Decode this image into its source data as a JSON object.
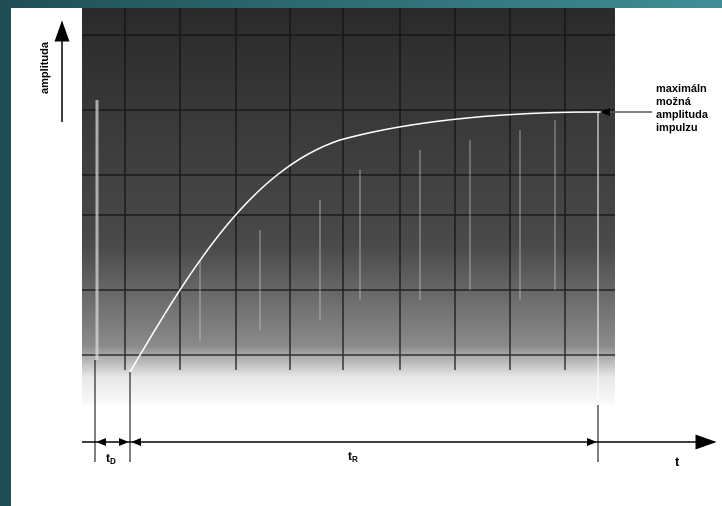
{
  "axis_label": "amplituda",
  "annotation": {
    "lines": [
      "maximáln",
      "možná",
      "amplituda",
      "impulzu"
    ]
  },
  "labels": {
    "delay": {
      "main": "t",
      "sub": "D"
    },
    "rise": {
      "main": "t",
      "sub": "R"
    },
    "time": "t"
  }
}
